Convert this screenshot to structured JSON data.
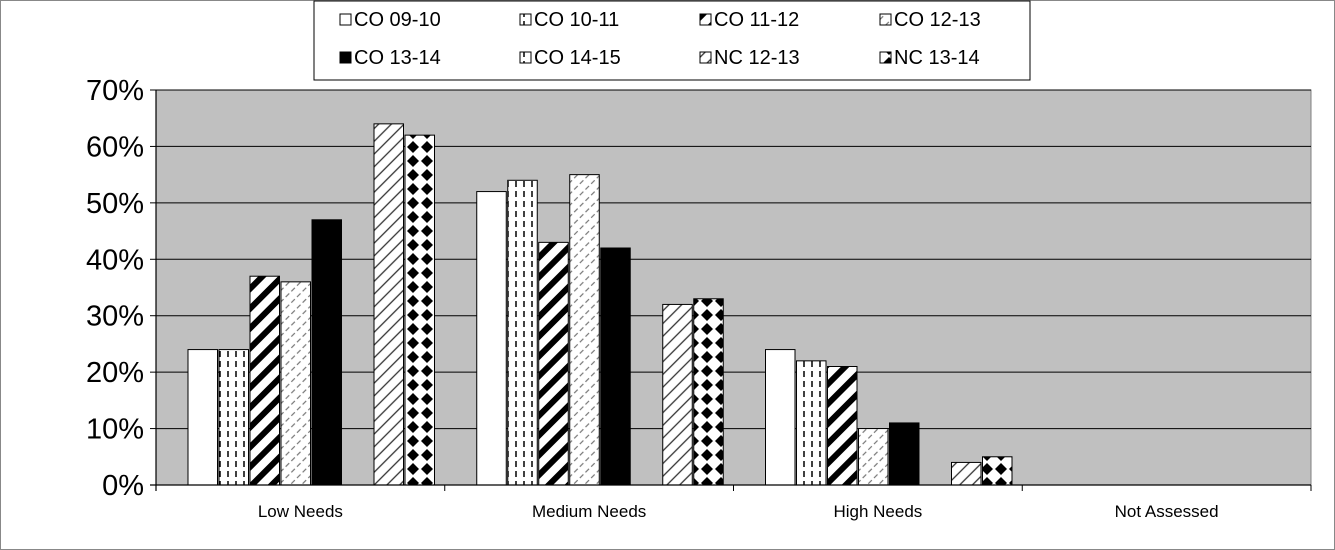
{
  "chart_data": {
    "type": "bar",
    "categories": [
      "Low Needs",
      "Medium Needs",
      "High Needs",
      "Not Assessed"
    ],
    "series": [
      {
        "name": "CO 09-10",
        "pattern": "solid-white",
        "values": [
          24,
          52,
          24,
          0
        ]
      },
      {
        "name": "CO 10-11",
        "pattern": "vertical-dashes",
        "values": [
          24,
          54,
          22,
          0
        ]
      },
      {
        "name": "CO 11-12",
        "pattern": "wide-diagonal",
        "values": [
          37,
          43,
          21,
          0
        ]
      },
      {
        "name": "CO 12-13",
        "pattern": "light-diagonal-dashes",
        "values": [
          36,
          55,
          10,
          0
        ]
      },
      {
        "name": "CO 13-14",
        "pattern": "solid-black",
        "values": [
          47,
          42,
          11,
          0
        ]
      },
      {
        "name": "CO 14-15",
        "pattern": "vertical-dashes",
        "values": [
          null,
          null,
          null,
          null
        ]
      },
      {
        "name": "NC 12-13",
        "pattern": "diagonal-lines",
        "values": [
          64,
          32,
          4,
          0
        ]
      },
      {
        "name": "NC 13-14",
        "pattern": "diamonds",
        "values": [
          62,
          33,
          5,
          0
        ]
      }
    ],
    "yticks": [
      "0%",
      "10%",
      "20%",
      "30%",
      "40%",
      "50%",
      "60%",
      "70%"
    ],
    "ylim": [
      0,
      70
    ],
    "grid": true,
    "legend_position": "top",
    "plot_background": "#c0c0c0",
    "title": "",
    "xlabel": "",
    "ylabel": ""
  }
}
